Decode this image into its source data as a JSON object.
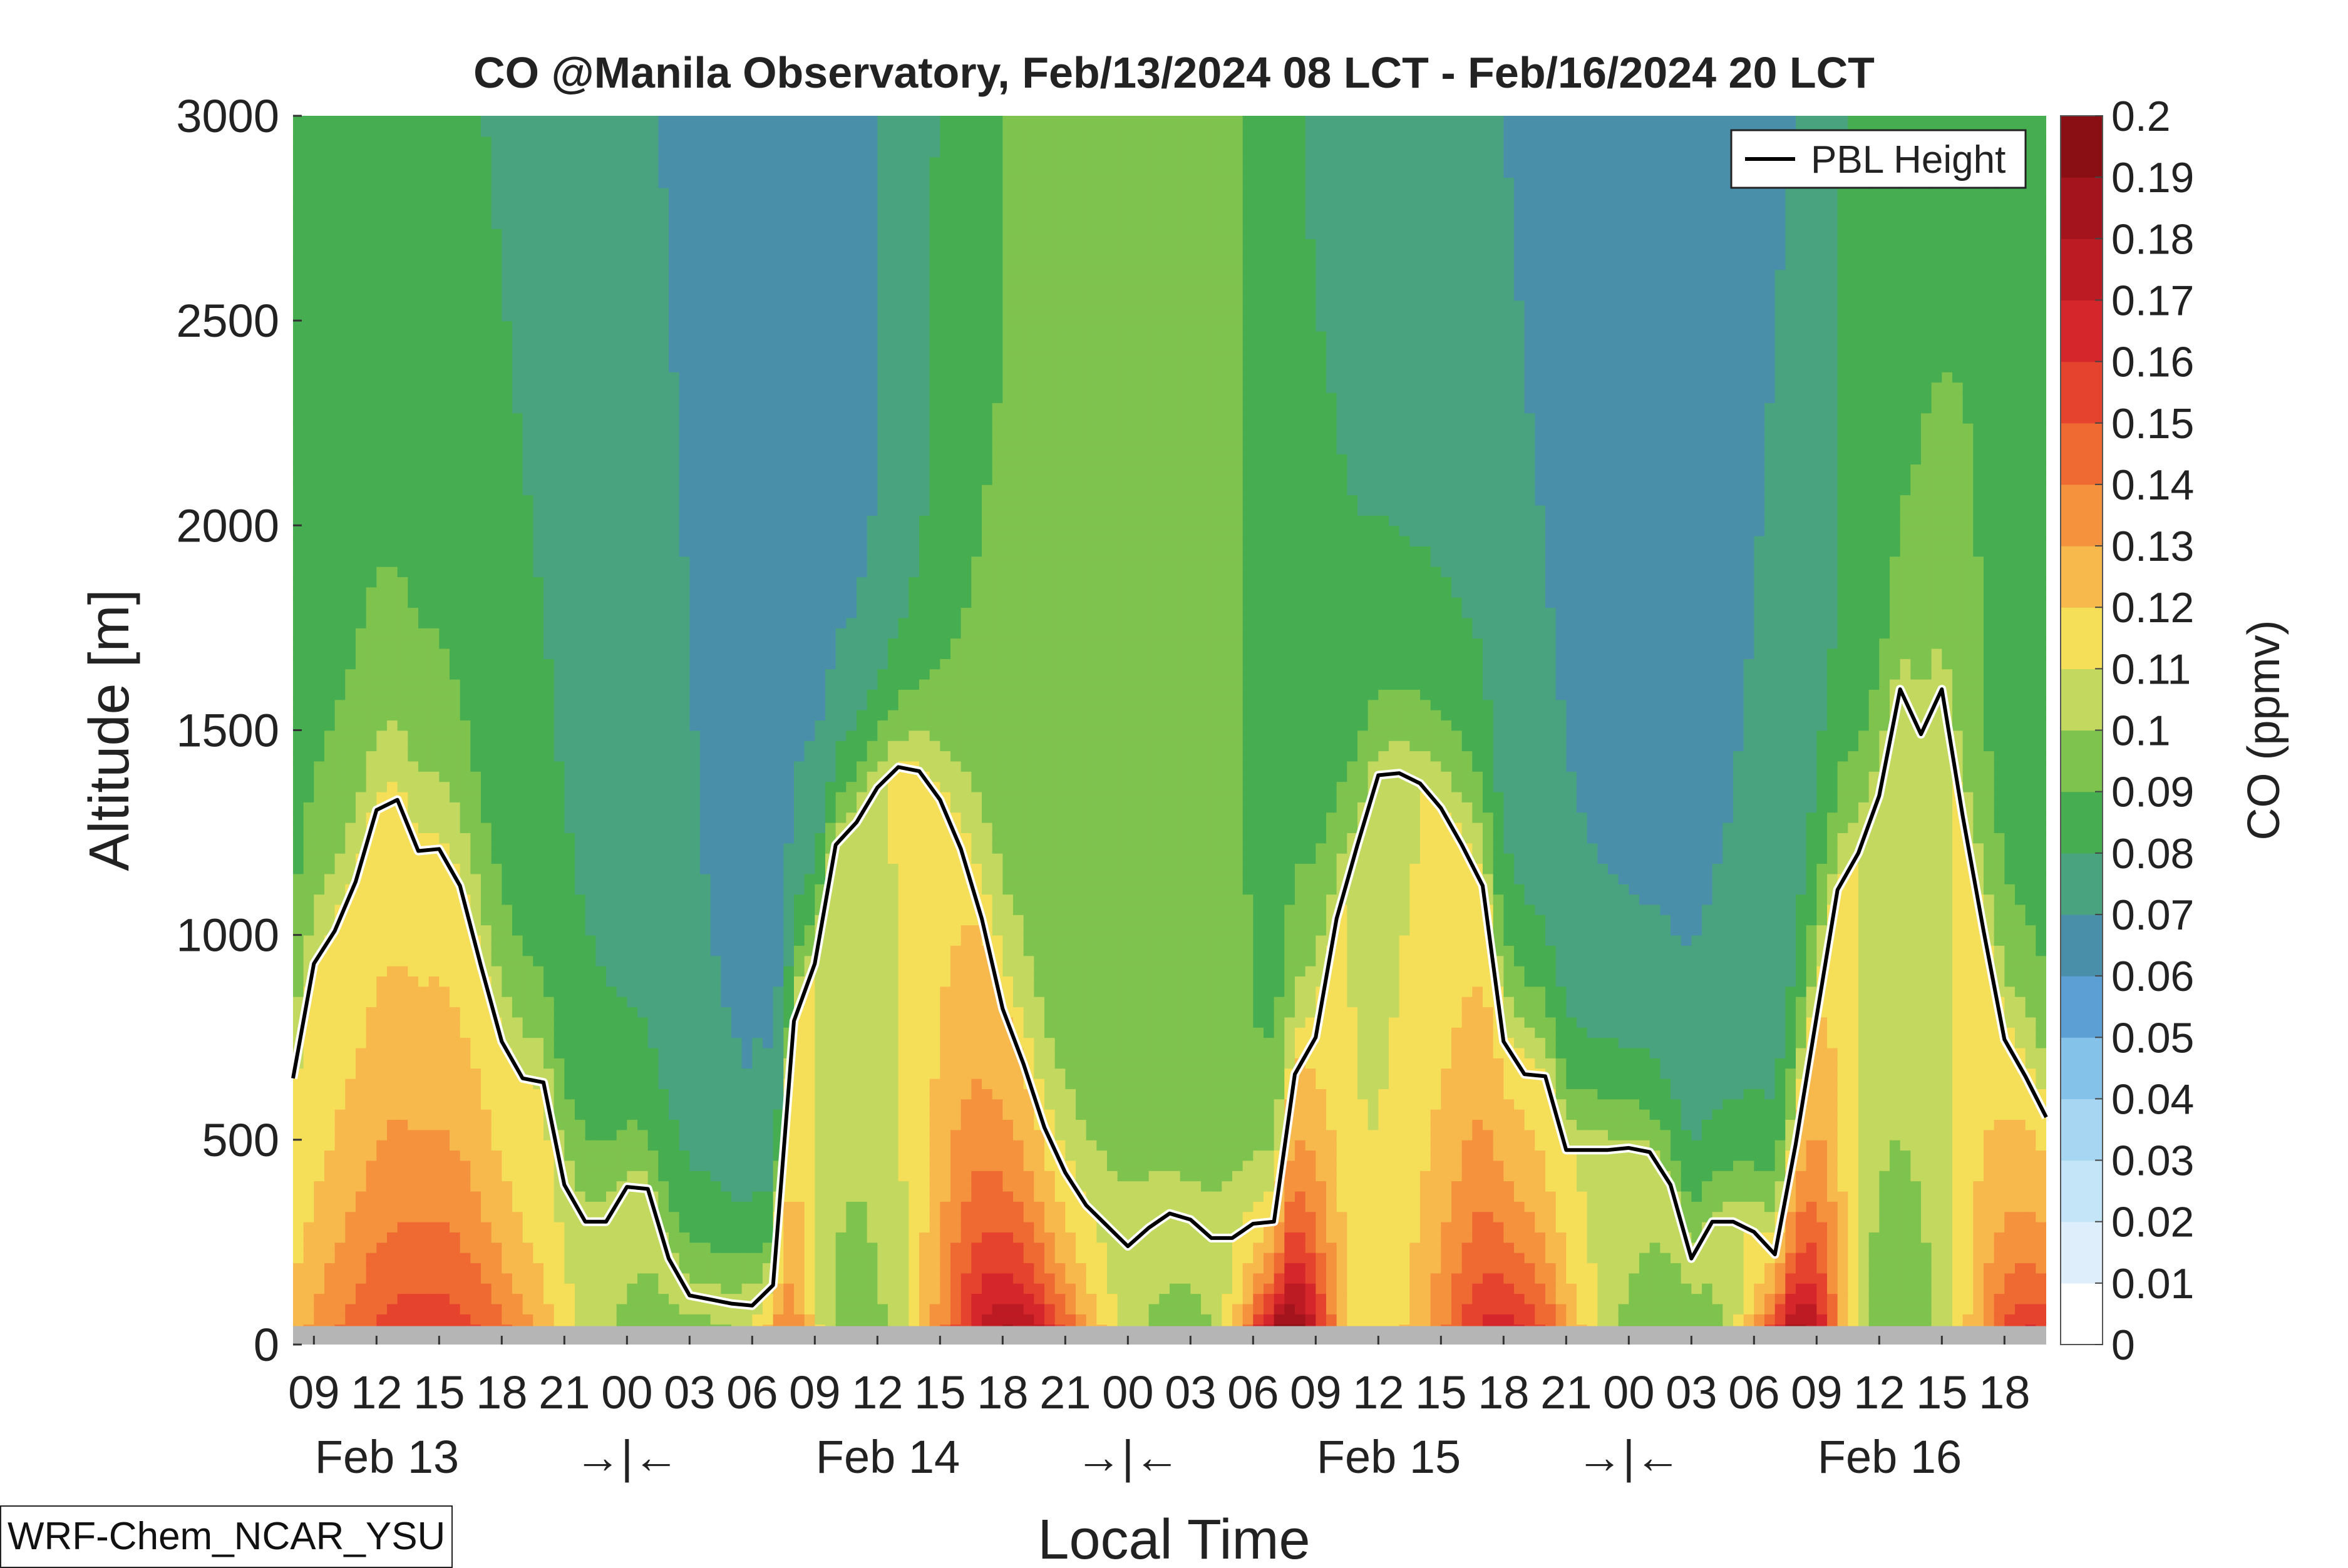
{
  "footer_label": "WRF-Chem_NCAR_YSU",
  "chart_data": {
    "type": "contour",
    "title": "CO @Manila Observatory, Feb/13/2024 08 LCT - Feb/16/2024 20 LCT",
    "xlabel": "Local Time",
    "ylabel": "Altitude [m]",
    "colorbar_label": "CO (ppmv)",
    "ylim": [
      0,
      3000
    ],
    "yticks": [
      0,
      500,
      1000,
      1500,
      2000,
      2500,
      3000
    ],
    "xlim_hours": [
      8,
      92
    ],
    "hour_ticks": [
      {
        "h": 9,
        "label": "09"
      },
      {
        "h": 12,
        "label": "12"
      },
      {
        "h": 15,
        "label": "15"
      },
      {
        "h": 18,
        "label": "18"
      },
      {
        "h": 21,
        "label": "21"
      },
      {
        "h": 24,
        "label": "00"
      },
      {
        "h": 27,
        "label": "03"
      },
      {
        "h": 30,
        "label": "06"
      },
      {
        "h": 33,
        "label": "09"
      },
      {
        "h": 36,
        "label": "12"
      },
      {
        "h": 39,
        "label": "15"
      },
      {
        "h": 42,
        "label": "18"
      },
      {
        "h": 45,
        "label": "21"
      },
      {
        "h": 48,
        "label": "00"
      },
      {
        "h": 51,
        "label": "03"
      },
      {
        "h": 54,
        "label": "06"
      },
      {
        "h": 57,
        "label": "09"
      },
      {
        "h": 60,
        "label": "12"
      },
      {
        "h": 63,
        "label": "15"
      },
      {
        "h": 66,
        "label": "18"
      },
      {
        "h": 69,
        "label": "21"
      },
      {
        "h": 72,
        "label": "00"
      },
      {
        "h": 75,
        "label": "03"
      },
      {
        "h": 78,
        "label": "06"
      },
      {
        "h": 81,
        "label": "09"
      },
      {
        "h": 84,
        "label": "12"
      },
      {
        "h": 87,
        "label": "15"
      },
      {
        "h": 90,
        "label": "18"
      }
    ],
    "day_labels": [
      {
        "h": 12.5,
        "label": "Feb 13"
      },
      {
        "h": 24,
        "label": "→|←"
      },
      {
        "h": 36.5,
        "label": "Feb 14"
      },
      {
        "h": 48,
        "label": "→|←"
      },
      {
        "h": 60.5,
        "label": "Feb 15"
      },
      {
        "h": 72,
        "label": "→|←"
      },
      {
        "h": 84.5,
        "label": "Feb 16"
      }
    ],
    "colorbar_levels": [
      0,
      0.01,
      0.02,
      0.03,
      0.04,
      0.05,
      0.06,
      0.07,
      0.08,
      0.09,
      0.1,
      0.11,
      0.12,
      0.13,
      0.14,
      0.15,
      0.16,
      0.17,
      0.18,
      0.19,
      0.2
    ],
    "colorbar_tick_labels": [
      "0",
      "0.01",
      "0.02",
      "0.03",
      "0.04",
      "0.05",
      "0.06",
      "0.07",
      "0.08",
      "0.09",
      "0.1",
      "0.11",
      "0.12",
      "0.13",
      "0.14",
      "0.15",
      "0.16",
      "0.17",
      "0.18",
      "0.19",
      "0.2"
    ],
    "colorbar_colors": [
      "#ffffff",
      "#deeffb",
      "#c4e5f7",
      "#a6d6f1",
      "#84c2ea",
      "#5c9fd4",
      "#4a8faa",
      "#48a37e",
      "#46ad50",
      "#7fc34f",
      "#c2d85f",
      "#f6df58",
      "#f7b84c",
      "#f4923d",
      "#ef6a33",
      "#e5432e",
      "#d5262c",
      "#bd1b24",
      "#a4141c",
      "#8a0f15"
    ],
    "ground_color": "#b5b5b5",
    "legend": {
      "label": "PBL Height",
      "position": "top-right"
    },
    "pbl_height": {
      "hours": [
        8,
        9,
        10,
        11,
        12,
        13,
        14,
        15,
        16,
        17,
        18,
        19,
        20,
        21,
        22,
        23,
        24,
        25,
        26,
        27,
        28,
        29,
        30,
        31,
        32,
        33,
        34,
        35,
        36,
        37,
        38,
        39,
        40,
        41,
        42,
        43,
        44,
        45,
        46,
        47,
        48,
        49,
        50,
        51,
        52,
        53,
        54,
        55,
        56,
        57,
        58,
        59,
        60,
        61,
        62,
        63,
        64,
        65,
        66,
        67,
        68,
        69,
        70,
        71,
        72,
        73,
        74,
        75,
        76,
        77,
        78,
        79,
        80,
        81,
        82,
        83,
        84,
        85,
        86,
        87,
        88,
        89,
        90,
        91,
        92
      ],
      "values": [
        650,
        930,
        1010,
        1130,
        1305,
        1330,
        1205,
        1210,
        1120,
        925,
        740,
        650,
        640,
        390,
        300,
        300,
        385,
        380,
        210,
        120,
        110,
        100,
        95,
        145,
        790,
        930,
        1220,
        1275,
        1360,
        1410,
        1400,
        1330,
        1210,
        1040,
        820,
        685,
        530,
        420,
        340,
        290,
        240,
        285,
        320,
        305,
        260,
        260,
        295,
        300,
        660,
        750,
        1040,
        1220,
        1390,
        1395,
        1370,
        1310,
        1220,
        1120,
        740,
        660,
        655,
        475,
        475,
        475,
        480,
        470,
        390,
        210,
        300,
        300,
        275,
        220,
        490,
        800,
        1110,
        1200,
        1340,
        1600,
        1490,
        1600,
        1290,
        1010,
        745,
        655,
        555
      ]
    }
  }
}
